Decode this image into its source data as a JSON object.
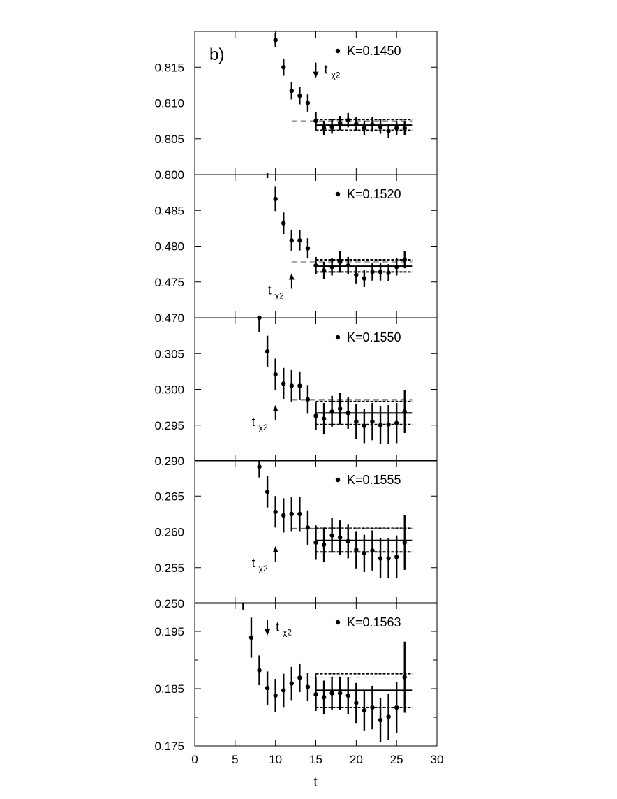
{
  "figure": {
    "panel_label": "b)",
    "xlabel": "t",
    "chi_label": "t",
    "chi_sub": "χ2"
  },
  "chart_data": [
    {
      "type": "scatter",
      "legend": "K=0.1450",
      "xlim": [
        0,
        30
      ],
      "ylim": [
        0.8,
        0.82
      ],
      "yticks": [
        0.8,
        0.805,
        0.81,
        0.815
      ],
      "ytick_labels": [
        "0.800",
        "0.805",
        "0.810",
        "0.815"
      ],
      "points": [
        {
          "t": 10,
          "y": 0.8188,
          "err": 0.001
        },
        {
          "t": 11,
          "y": 0.815,
          "err": 0.0012
        },
        {
          "t": 12,
          "y": 0.8117,
          "err": 0.0012
        },
        {
          "t": 13,
          "y": 0.811,
          "err": 0.0012
        },
        {
          "t": 14,
          "y": 0.81,
          "err": 0.0012
        },
        {
          "t": 15,
          "y": 0.8075,
          "err": 0.0012
        },
        {
          "t": 16,
          "y": 0.8065,
          "err": 0.001
        },
        {
          "t": 17,
          "y": 0.8067,
          "err": 0.001
        },
        {
          "t": 18,
          "y": 0.8072,
          "err": 0.001
        },
        {
          "t": 19,
          "y": 0.8076,
          "err": 0.001
        },
        {
          "t": 20,
          "y": 0.8071,
          "err": 0.001
        },
        {
          "t": 21,
          "y": 0.8065,
          "err": 0.001
        },
        {
          "t": 22,
          "y": 0.807,
          "err": 0.001
        },
        {
          "t": 23,
          "y": 0.8067,
          "err": 0.001
        },
        {
          "t": 24,
          "y": 0.8061,
          "err": 0.001
        },
        {
          "t": 25,
          "y": 0.8065,
          "err": 0.001
        },
        {
          "t": 26,
          "y": 0.8065,
          "err": 0.001
        }
      ],
      "fit": {
        "t_start": 15,
        "t_end": 27,
        "center": 0.8069,
        "upper": 0.8077,
        "lower": 0.8062,
        "dashed": 0.8075
      },
      "t_chi2": {
        "t": 15,
        "direction": "down",
        "label_side": "right",
        "y_tip": 0.8135
      },
      "clipped_mark": {
        "t": 9,
        "y_top": 0.8002,
        "y_bottom": 0.7995
      }
    },
    {
      "type": "scatter",
      "legend": "K=0.1520",
      "xlim": [
        0,
        30
      ],
      "ylim": [
        0.47,
        0.49
      ],
      "yticks": [
        0.47,
        0.475,
        0.48,
        0.485
      ],
      "ytick_labels": [
        "0.470",
        "0.475",
        "0.480",
        "0.485"
      ],
      "points": [
        {
          "t": 10,
          "y": 0.4866,
          "err": 0.0017
        },
        {
          "t": 11,
          "y": 0.4832,
          "err": 0.0015
        },
        {
          "t": 12,
          "y": 0.4808,
          "err": 0.0015
        },
        {
          "t": 13,
          "y": 0.4808,
          "err": 0.0014
        },
        {
          "t": 14,
          "y": 0.4797,
          "err": 0.0014
        },
        {
          "t": 15,
          "y": 0.4773,
          "err": 0.0012
        },
        {
          "t": 16,
          "y": 0.4766,
          "err": 0.0012
        },
        {
          "t": 17,
          "y": 0.4771,
          "err": 0.0012
        },
        {
          "t": 18,
          "y": 0.4778,
          "err": 0.0015
        },
        {
          "t": 19,
          "y": 0.4773,
          "err": 0.0012
        },
        {
          "t": 20,
          "y": 0.476,
          "err": 0.0012
        },
        {
          "t": 21,
          "y": 0.4755,
          "err": 0.0012
        },
        {
          "t": 22,
          "y": 0.4764,
          "err": 0.0012
        },
        {
          "t": 23,
          "y": 0.4764,
          "err": 0.0012
        },
        {
          "t": 24,
          "y": 0.4763,
          "err": 0.0012
        },
        {
          "t": 25,
          "y": 0.4771,
          "err": 0.0012
        },
        {
          "t": 26,
          "y": 0.4781,
          "err": 0.0012
        }
      ],
      "fit": {
        "t_start": 15,
        "t_end": 27,
        "center": 0.4772,
        "upper": 0.4781,
        "lower": 0.4764,
        "dashed": 0.4778
      },
      "t_chi2": {
        "t": 12,
        "direction": "up",
        "label_side": "left",
        "y_tip": 0.4762
      }
    },
    {
      "type": "scatter",
      "legend": "K=0.1550",
      "xlim": [
        0,
        30
      ],
      "ylim": [
        0.29,
        0.31
      ],
      "yticks": [
        0.29,
        0.295,
        0.3,
        0.305
      ],
      "ytick_labels": [
        "0.290",
        "0.295",
        "0.300",
        "0.305"
      ],
      "points": [
        {
          "t": 8,
          "y": 0.31,
          "err": 0.002
        },
        {
          "t": 9,
          "y": 0.3053,
          "err": 0.0022
        },
        {
          "t": 10,
          "y": 0.3021,
          "err": 0.0022
        },
        {
          "t": 11,
          "y": 0.3008,
          "err": 0.0022
        },
        {
          "t": 12,
          "y": 0.3005,
          "err": 0.0022
        },
        {
          "t": 13,
          "y": 0.3005,
          "err": 0.002
        },
        {
          "t": 14,
          "y": 0.2986,
          "err": 0.002
        },
        {
          "t": 15,
          "y": 0.2963,
          "err": 0.002
        },
        {
          "t": 16,
          "y": 0.2959,
          "err": 0.0022
        },
        {
          "t": 17,
          "y": 0.2969,
          "err": 0.0022
        },
        {
          "t": 18,
          "y": 0.2973,
          "err": 0.0022
        },
        {
          "t": 19,
          "y": 0.2967,
          "err": 0.0022
        },
        {
          "t": 20,
          "y": 0.2955,
          "err": 0.0024
        },
        {
          "t": 21,
          "y": 0.2949,
          "err": 0.0024
        },
        {
          "t": 22,
          "y": 0.2955,
          "err": 0.0026
        },
        {
          "t": 23,
          "y": 0.295,
          "err": 0.0026
        },
        {
          "t": 24,
          "y": 0.2951,
          "err": 0.0027
        },
        {
          "t": 25,
          "y": 0.2953,
          "err": 0.0028
        },
        {
          "t": 26,
          "y": 0.2969,
          "err": 0.003
        }
      ],
      "fit": {
        "t_start": 15,
        "t_end": 27,
        "center": 0.2967,
        "upper": 0.2983,
        "lower": 0.2951,
        "dashed": 0.2985
      },
      "t_chi2": {
        "t": 10,
        "direction": "up",
        "label_side": "left",
        "y_tip": 0.2978
      }
    },
    {
      "type": "scatter",
      "legend": "K=0.1555",
      "xlim": [
        0,
        30
      ],
      "ylim": [
        0.25,
        0.27
      ],
      "yticks": [
        0.25,
        0.255,
        0.26,
        0.265
      ],
      "ytick_labels": [
        "0.250",
        "0.255",
        "0.260",
        "0.265"
      ],
      "points": [
        {
          "t": 8,
          "y": 0.2691,
          "err": 0.0015
        },
        {
          "t": 9,
          "y": 0.2656,
          "err": 0.0022
        },
        {
          "t": 10,
          "y": 0.2628,
          "err": 0.0022
        },
        {
          "t": 11,
          "y": 0.2623,
          "err": 0.0024
        },
        {
          "t": 12,
          "y": 0.2625,
          "err": 0.0024
        },
        {
          "t": 13,
          "y": 0.2625,
          "err": 0.0024
        },
        {
          "t": 14,
          "y": 0.2606,
          "err": 0.0024
        },
        {
          "t": 15,
          "y": 0.2585,
          "err": 0.0024
        },
        {
          "t": 16,
          "y": 0.2582,
          "err": 0.0024
        },
        {
          "t": 17,
          "y": 0.2595,
          "err": 0.0024
        },
        {
          "t": 18,
          "y": 0.2592,
          "err": 0.0024
        },
        {
          "t": 19,
          "y": 0.2587,
          "err": 0.0024
        },
        {
          "t": 20,
          "y": 0.2575,
          "err": 0.0026
        },
        {
          "t": 21,
          "y": 0.257,
          "err": 0.0026
        },
        {
          "t": 22,
          "y": 0.2574,
          "err": 0.0028
        },
        {
          "t": 23,
          "y": 0.2563,
          "err": 0.0028
        },
        {
          "t": 24,
          "y": 0.2563,
          "err": 0.0028
        },
        {
          "t": 25,
          "y": 0.2565,
          "err": 0.003
        },
        {
          "t": 26,
          "y": 0.2585,
          "err": 0.0038
        }
      ],
      "fit": {
        "t_start": 15,
        "t_end": 27,
        "center": 0.2588,
        "upper": 0.2605,
        "lower": 0.2572,
        "dashed": 0.2605
      },
      "t_chi2": {
        "t": 10,
        "direction": "up",
        "label_side": "left",
        "y_tip": 0.258
      }
    },
    {
      "type": "scatter",
      "legend": "K=0.1563",
      "xlim": [
        0,
        30
      ],
      "ylim": [
        0.175,
        0.2
      ],
      "yticks": [
        0.175,
        0.185,
        0.195
      ],
      "ytick_labels": [
        "0.175",
        "0.185",
        "0.195"
      ],
      "minor_yticks": [
        0.18,
        0.19
      ],
      "points": [
        {
          "t": 7,
          "y": 0.1939,
          "err": 0.0035
        },
        {
          "t": 8,
          "y": 0.1882,
          "err": 0.0026
        },
        {
          "t": 9,
          "y": 0.1851,
          "err": 0.0029
        },
        {
          "t": 10,
          "y": 0.1838,
          "err": 0.0029
        },
        {
          "t": 11,
          "y": 0.1847,
          "err": 0.0029
        },
        {
          "t": 12,
          "y": 0.1859,
          "err": 0.0029
        },
        {
          "t": 13,
          "y": 0.1869,
          "err": 0.0025
        },
        {
          "t": 14,
          "y": 0.1853,
          "err": 0.0025
        },
        {
          "t": 15,
          "y": 0.184,
          "err": 0.0029
        },
        {
          "t": 16,
          "y": 0.1835,
          "err": 0.0029
        },
        {
          "t": 17,
          "y": 0.1842,
          "err": 0.0029
        },
        {
          "t": 18,
          "y": 0.1842,
          "err": 0.0029
        },
        {
          "t": 19,
          "y": 0.1838,
          "err": 0.0032
        },
        {
          "t": 20,
          "y": 0.1825,
          "err": 0.0035
        },
        {
          "t": 21,
          "y": 0.1812,
          "err": 0.0035
        },
        {
          "t": 22,
          "y": 0.1817,
          "err": 0.0038
        },
        {
          "t": 23,
          "y": 0.1795,
          "err": 0.0038
        },
        {
          "t": 24,
          "y": 0.1801,
          "err": 0.004
        },
        {
          "t": 25,
          "y": 0.1817,
          "err": 0.0045
        },
        {
          "t": 26,
          "y": 0.187,
          "err": 0.0062
        }
      ],
      "fit": {
        "t_start": 15,
        "t_end": 27,
        "center": 0.1847,
        "upper": 0.1876,
        "lower": 0.1817,
        "dashed": 0.187
      },
      "t_chi2": {
        "t": 9,
        "direction": "down",
        "label_side": "right",
        "y_tip": 0.1943
      },
      "clipped_mark": {
        "t": 6,
        "y_top": 0.2,
        "y_bottom": 0.1988
      }
    }
  ],
  "x_axis": {
    "ticks": [
      0,
      5,
      10,
      15,
      20,
      25,
      30
    ],
    "tick_labels": [
      "0",
      "5",
      "10",
      "15",
      "20",
      "25",
      "30"
    ]
  },
  "bottom_label": "0.175"
}
